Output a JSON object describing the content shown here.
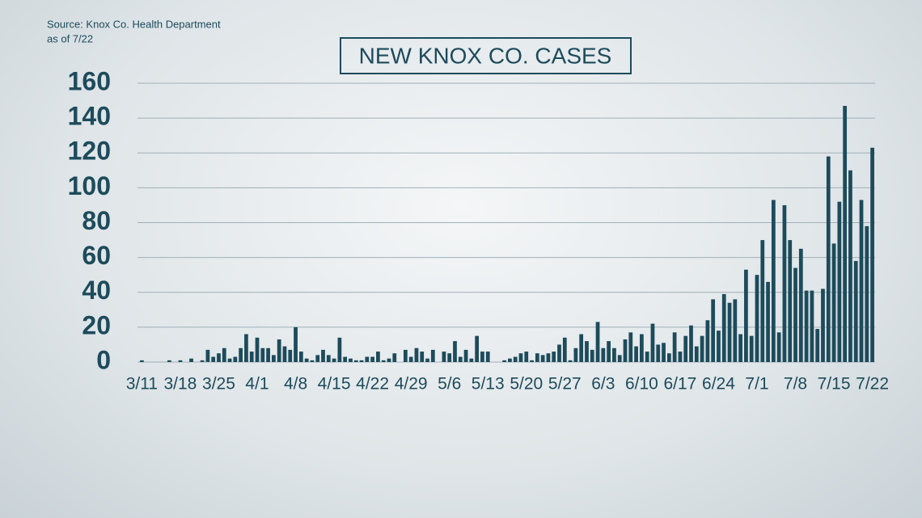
{
  "source": "Source: Knox Co. Health Department",
  "as_of": "as of 7/22",
  "chart_data": {
    "type": "bar",
    "title": "NEW KNOX CO. CASES",
    "color": "#1d4b5b",
    "grid": true,
    "ylim": [
      0,
      160
    ],
    "yticks": [
      0,
      20,
      40,
      60,
      80,
      100,
      120,
      140,
      160
    ],
    "categories": [
      "3/11",
      null,
      null,
      null,
      null,
      null,
      null,
      "3/18",
      null,
      null,
      null,
      null,
      null,
      null,
      "3/25",
      null,
      null,
      null,
      null,
      null,
      null,
      "4/1",
      null,
      null,
      null,
      null,
      null,
      null,
      "4/8",
      null,
      null,
      null,
      null,
      null,
      null,
      "4/15",
      null,
      null,
      null,
      null,
      null,
      null,
      "4/22",
      null,
      null,
      null,
      null,
      null,
      null,
      "4/29",
      null,
      null,
      null,
      null,
      null,
      null,
      "5/6",
      null,
      null,
      null,
      null,
      null,
      null,
      "5/13",
      null,
      null,
      null,
      null,
      null,
      null,
      "5/20",
      null,
      null,
      null,
      null,
      null,
      null,
      "5/27",
      null,
      null,
      null,
      null,
      null,
      null,
      "6/3",
      null,
      null,
      null,
      null,
      null,
      null,
      "6/10",
      null,
      null,
      null,
      null,
      null,
      null,
      "6/17",
      null,
      null,
      null,
      null,
      null,
      null,
      "6/24",
      null,
      null,
      null,
      null,
      null,
      null,
      "7/1",
      null,
      null,
      null,
      null,
      null,
      null,
      "7/8",
      null,
      null,
      null,
      null,
      null,
      null,
      "7/15",
      null,
      null,
      null,
      null,
      null,
      null,
      "7/22"
    ],
    "values": [
      1,
      0,
      0,
      0,
      0,
      1,
      0,
      1,
      0,
      2,
      0,
      1,
      7,
      3,
      5,
      8,
      2,
      3,
      8,
      16,
      6,
      14,
      8,
      8,
      4,
      13,
      9,
      7,
      20,
      6,
      2,
      1,
      4,
      7,
      4,
      2,
      14,
      3,
      2,
      1,
      1,
      3,
      3,
      6,
      1,
      2,
      5,
      0,
      7,
      3,
      8,
      6,
      2,
      7,
      0,
      6,
      5,
      12,
      3,
      7,
      2,
      15,
      6,
      6,
      0,
      0,
      1,
      2,
      3,
      5,
      6,
      1,
      5,
      4,
      5,
      6,
      10,
      14,
      1,
      8,
      16,
      12,
      7,
      23,
      8,
      12,
      8,
      4,
      13,
      17,
      9,
      16,
      6,
      22,
      10,
      11,
      5,
      17,
      6,
      15,
      21,
      9,
      15,
      24,
      36,
      18,
      39,
      34,
      36,
      16,
      53,
      15,
      50,
      70,
      46,
      93,
      17,
      90,
      70,
      54,
      65,
      41,
      41,
      19,
      42,
      118,
      68,
      92,
      147,
      110,
      58,
      93,
      78,
      123
    ]
  }
}
